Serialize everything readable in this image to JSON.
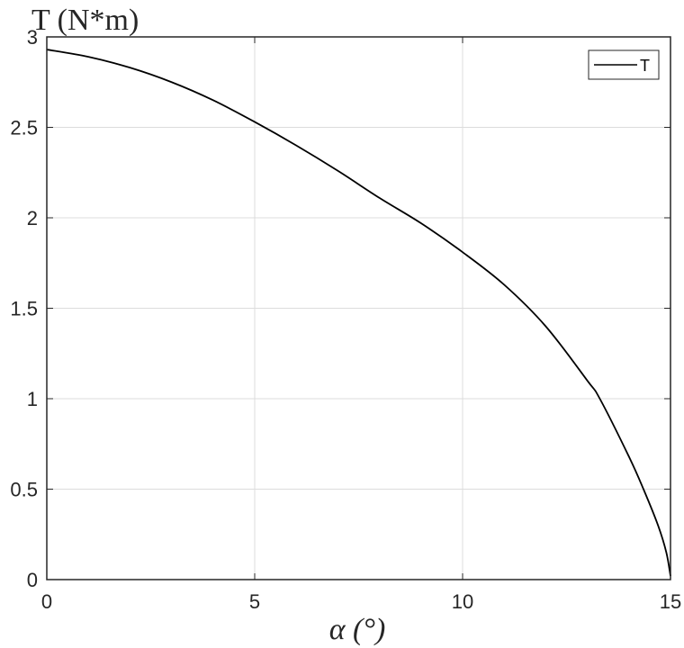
{
  "chart_data": {
    "type": "line",
    "title": "",
    "ylabel": "T (N*m)",
    "xlabel": "α (°)",
    "xlim": [
      0,
      15
    ],
    "ylim": [
      0,
      3
    ],
    "xticks": [
      "0",
      "5",
      "10",
      "15"
    ],
    "yticks": [
      "0",
      "0.5",
      "1",
      "1.5",
      "2",
      "2.5",
      "3"
    ],
    "grid": true,
    "legend": {
      "position": "top-right",
      "entries": [
        "T"
      ]
    },
    "series": [
      {
        "name": "T",
        "color": "#000000",
        "x": [
          0,
          1,
          2,
          3,
          4,
          5,
          6,
          7,
          8,
          9,
          10,
          11,
          12,
          13,
          13.3,
          14,
          14.35,
          14.7,
          14.9,
          15
        ],
        "y": [
          2.93,
          2.89,
          2.83,
          2.75,
          2.65,
          2.53,
          2.4,
          2.26,
          2.11,
          1.97,
          1.81,
          1.63,
          1.4,
          1.1,
          1.0,
          0.68,
          0.5,
          0.3,
          0.15,
          0.02
        ]
      }
    ]
  }
}
